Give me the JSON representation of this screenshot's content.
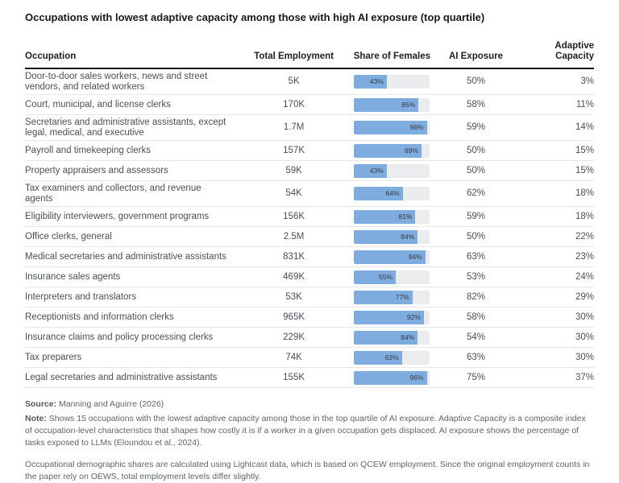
{
  "chart_data": {
    "type": "table",
    "title": "Occupations with lowest adaptive capacity among those with high AI exposure (top quartile)",
    "columns": [
      "Occupation",
      "Total Employment",
      "Share of Females",
      "AI Exposure",
      "Adaptive Capacity"
    ],
    "share_of_females_bar": {
      "axis_min": 0,
      "axis_max": 100,
      "unit": "%",
      "bar_fill_color": "#7facdf",
      "bar_track_color": "#ebeced"
    },
    "rows": [
      {
        "occupation": "Door-to-door sales workers, news and street vendors, and related workers",
        "total_employment": "5K",
        "share_of_females_pct": 43,
        "ai_exposure_pct": 50,
        "adaptive_capacity_pct": 3
      },
      {
        "occupation": "Court, municipal, and license clerks",
        "total_employment": "170K",
        "share_of_females_pct": 85,
        "ai_exposure_pct": 58,
        "adaptive_capacity_pct": 11
      },
      {
        "occupation": "Secretaries and administrative assistants, except legal, medical, and executive",
        "total_employment": "1.7M",
        "share_of_females_pct": 96,
        "ai_exposure_pct": 59,
        "adaptive_capacity_pct": 14
      },
      {
        "occupation": "Payroll and timekeeping clerks",
        "total_employment": "157K",
        "share_of_females_pct": 89,
        "ai_exposure_pct": 50,
        "adaptive_capacity_pct": 15
      },
      {
        "occupation": "Property appraisers and assessors",
        "total_employment": "59K",
        "share_of_females_pct": 43,
        "ai_exposure_pct": 50,
        "adaptive_capacity_pct": 15
      },
      {
        "occupation": "Tax examiners and collectors, and revenue agents",
        "total_employment": "54K",
        "share_of_females_pct": 64,
        "ai_exposure_pct": 62,
        "adaptive_capacity_pct": 18
      },
      {
        "occupation": "Eligibility interviewers, government programs",
        "total_employment": "156K",
        "share_of_females_pct": 81,
        "ai_exposure_pct": 59,
        "adaptive_capacity_pct": 18
      },
      {
        "occupation": "Office clerks, general",
        "total_employment": "2.5M",
        "share_of_females_pct": 84,
        "ai_exposure_pct": 50,
        "adaptive_capacity_pct": 22
      },
      {
        "occupation": "Medical secretaries and administrative assistants",
        "total_employment": "831K",
        "share_of_females_pct": 94,
        "ai_exposure_pct": 63,
        "adaptive_capacity_pct": 23
      },
      {
        "occupation": "Insurance sales agents",
        "total_employment": "469K",
        "share_of_females_pct": 55,
        "ai_exposure_pct": 53,
        "adaptive_capacity_pct": 24
      },
      {
        "occupation": "Interpreters and translators",
        "total_employment": "53K",
        "share_of_females_pct": 77,
        "ai_exposure_pct": 82,
        "adaptive_capacity_pct": 29
      },
      {
        "occupation": "Receptionists and information clerks",
        "total_employment": "965K",
        "share_of_females_pct": 92,
        "ai_exposure_pct": 58,
        "adaptive_capacity_pct": 30
      },
      {
        "occupation": "Insurance claims and policy processing clerks",
        "total_employment": "229K",
        "share_of_females_pct": 84,
        "ai_exposure_pct": 54,
        "adaptive_capacity_pct": 30
      },
      {
        "occupation": "Tax preparers",
        "total_employment": "74K",
        "share_of_females_pct": 63,
        "ai_exposure_pct": 63,
        "adaptive_capacity_pct": 30
      },
      {
        "occupation": "Legal secretaries and administrative assistants",
        "total_employment": "155K",
        "share_of_females_pct": 96,
        "ai_exposure_pct": 75,
        "adaptive_capacity_pct": 37
      }
    ]
  },
  "footer": {
    "source_label": "Source:",
    "source_text": " Manning and Aguirre (2026)",
    "note_label": "Note:",
    "note_text": " Shows 15 occupations with the lowest adaptive capacity among those in the top quartile of AI exposure. Adaptive Capacity is a composite index of occupation-level characteristics that shapes how costly it is if a worker in a given occupation gets displaced. AI exposure shows the percentage of tasks exposed to LLMs (Eloundou et al., 2024).",
    "methodology_text": "Occupational demographic shares are calculated using Lightcast data, which is based on QCEW employment. Since the original employment counts in the paper rely on OEWS, total employment levels differ slightly."
  },
  "colors": {
    "bar_fill": "#7facdf",
    "bar_track": "#ebeced",
    "header_rule": "#17191c",
    "row_divider": "#e6e6e6",
    "title_text": "#17191c",
    "body_text": "#4a4f55",
    "footnote_text": "#5f6368"
  }
}
